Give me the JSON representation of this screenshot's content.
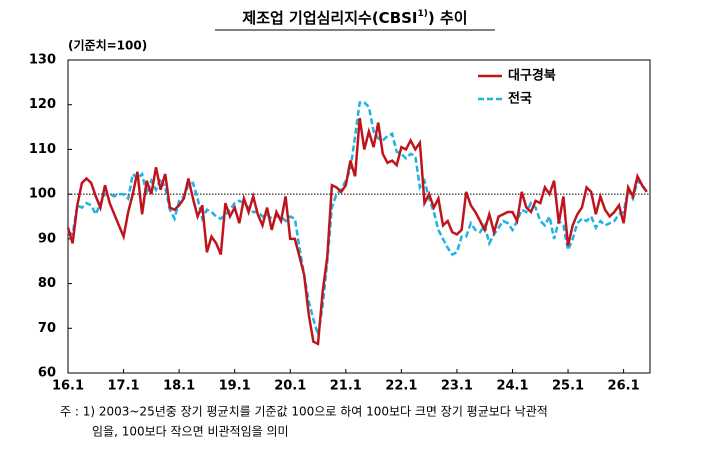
{
  "chart_data": {
    "type": "line",
    "title": "제조업  기업심리지수(CBSI",
    "title_sup": "1)",
    "title_end": ") 추이",
    "y_label": "(기준치=100)",
    "notes": [
      "주 : 1) 2003~25년중 장기 평균치를 기준값 100으로 하여 100보다 크면 장기 평균보다 낙관적",
      "임을, 100보다 작으면 비관적임을 의미"
    ],
    "categories": [
      "16.1",
      null,
      null,
      null,
      null,
      null,
      null,
      null,
      null,
      null,
      null,
      null,
      "17.1",
      null,
      null,
      null,
      null,
      null,
      null,
      null,
      null,
      null,
      null,
      null,
      "18.1",
      null,
      null,
      null,
      null,
      null,
      null,
      null,
      null,
      null,
      null,
      null,
      "19.1",
      null,
      null,
      null,
      null,
      null,
      null,
      null,
      null,
      null,
      null,
      null,
      "20.1",
      null,
      null,
      null,
      null,
      null,
      null,
      null,
      null,
      null,
      null,
      null,
      "21.1",
      null,
      null,
      null,
      null,
      null,
      null,
      null,
      null,
      null,
      null,
      null,
      "22.1",
      null,
      null,
      null,
      null,
      null,
      null,
      null,
      null,
      null,
      null,
      null,
      "23.1",
      null,
      null,
      null,
      null,
      null,
      null,
      null,
      null,
      null,
      null,
      null,
      "24.1",
      null,
      null,
      null,
      null,
      null,
      null,
      null,
      null,
      null,
      null,
      null,
      "25.1",
      null,
      null,
      null,
      null,
      null,
      null,
      null,
      null,
      null,
      null,
      null,
      "26.1",
      null,
      null,
      null,
      null,
      null
    ],
    "series": [
      {
        "name": "대구경북",
        "color": "#c0141c",
        "dash": false,
        "values": [
          92.5,
          89,
          97.5,
          102.5,
          103.5,
          102.5,
          99.5,
          97,
          102,
          98,
          95.5,
          93,
          90.5,
          96,
          100,
          105,
          95.5,
          103,
          100,
          106,
          101,
          104.5,
          97,
          96.5,
          97.5,
          99,
          103.5,
          99,
          95,
          97.5,
          87,
          90.5,
          89,
          86.5,
          98,
          95,
          97,
          93.5,
          99,
          96,
          99.5,
          95.5,
          93,
          97,
          92,
          96,
          94,
          99.5,
          90,
          90,
          86,
          82,
          73,
          67,
          66.5,
          78,
          86,
          102,
          101.5,
          100.5,
          102,
          107.5,
          104,
          117,
          110,
          114,
          110.5,
          116,
          109,
          107,
          107.5,
          106.5,
          110.5,
          110,
          112,
          110,
          111.5,
          98,
          100,
          97,
          99,
          93,
          94,
          91.5,
          91,
          92,
          100.5,
          97.5,
          96,
          94,
          92,
          95.5,
          91.5,
          95,
          95.5,
          96,
          96,
          94,
          100.5,
          97,
          96,
          98.5,
          98,
          101.5,
          100,
          103,
          93.5,
          99.5,
          88.5,
          93,
          95.5,
          97,
          101.5,
          100.5,
          95.5,
          99.5,
          96.5,
          95,
          96,
          97.5,
          93.5,
          101.5,
          99.5,
          104,
          102,
          100.5
        ]
      },
      {
        "name": "전국",
        "color": "#1fb2e3",
        "dash": true,
        "values": [
          91.5,
          91,
          97.5,
          97,
          98,
          97.5,
          95.5,
          98,
          100,
          100,
          99.5,
          100,
          100,
          99,
          104.5,
          103.5,
          104.5,
          100,
          103,
          101,
          103.5,
          101.5,
          96.5,
          94.5,
          98.5,
          99.5,
          102,
          102.5,
          99,
          94.5,
          96.5,
          96,
          95,
          94.5,
          95.5,
          96.5,
          98,
          98.5,
          98,
          97,
          96,
          96,
          95,
          95.5,
          94.5,
          95,
          95,
          94,
          95,
          94.5,
          88,
          82,
          76,
          72,
          68.5,
          75,
          85,
          97,
          100,
          101,
          103,
          105.5,
          113,
          120.5,
          120.5,
          119.5,
          114,
          112.5,
          112,
          113,
          113.5,
          109.5,
          109,
          108,
          109,
          108.5,
          101.5,
          103,
          99,
          96,
          92,
          90,
          88,
          86.5,
          87,
          90.5,
          90.5,
          93.5,
          92,
          91.5,
          93,
          89,
          91,
          92.5,
          94,
          93.5,
          92,
          94,
          96.5,
          96,
          98,
          97,
          94,
          93,
          95,
          90,
          94,
          93,
          87.5,
          90,
          93.5,
          94.5,
          94,
          95,
          92.5,
          94,
          93,
          93.5,
          94,
          95.5,
          96,
          101,
          99,
          103,
          102,
          100.5
        ]
      }
    ],
    "reference_line": 100,
    "ylim": [
      60,
      130
    ],
    "yticks": [
      60,
      70,
      80,
      90,
      100,
      110,
      120,
      130
    ],
    "legend": "upper right"
  }
}
